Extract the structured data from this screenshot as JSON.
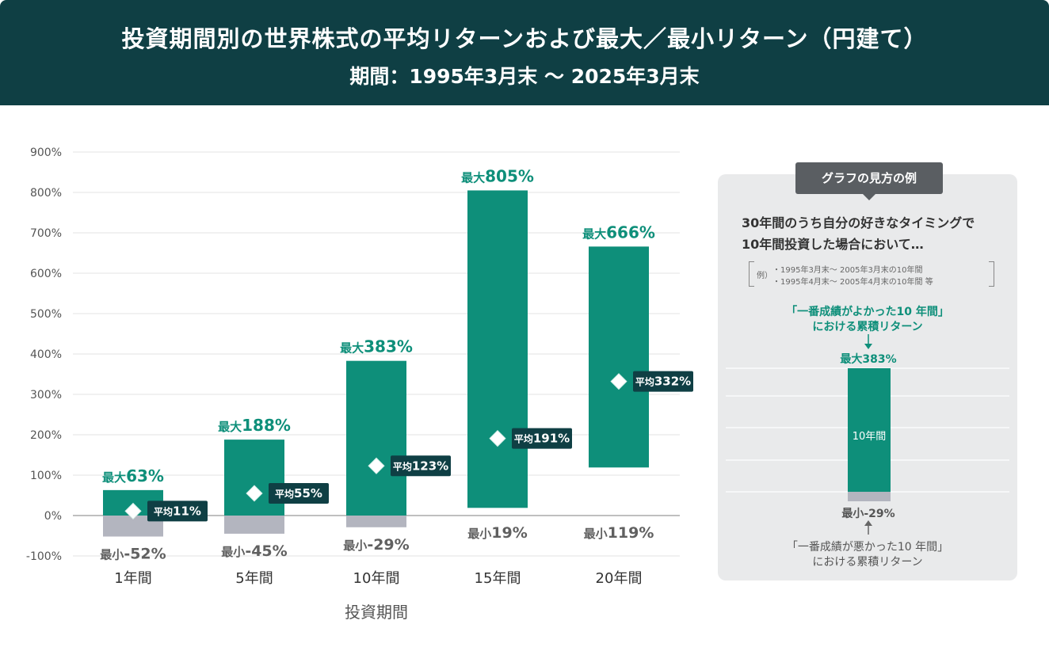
{
  "header": {
    "title": "投資期間別の世界株式の平均リターンおよび最大／最小リターン（円建て）",
    "subtitle": "期間：1995年3月末 ～ 2025年3月末"
  },
  "chart_data": {
    "type": "bar",
    "categories": [
      "1年間",
      "5年間",
      "10年間",
      "15年間",
      "20年間"
    ],
    "max": [
      63,
      188,
      383,
      805,
      666
    ],
    "min": [
      -52,
      -45,
      -29,
      19,
      119
    ],
    "avg": [
      11,
      55,
      123,
      191,
      332
    ],
    "max_prefix": "最大",
    "min_prefix": "最小",
    "avg_prefix": "平均",
    "unit": "%",
    "xlabel": "投資期間",
    "ylim": [
      -100,
      900
    ],
    "yticks": [
      "-100%",
      "0%",
      "100%",
      "200%",
      "300%",
      "400%",
      "500%",
      "600%",
      "700%",
      "800%",
      "900%"
    ],
    "colors": {
      "positive": "#0e8f7a",
      "negative": "#b3b5bf",
      "avg_label_bg": "#0f3f44",
      "max_text": "#0e8f7a",
      "min_text": "#606060"
    },
    "grid": true
  },
  "panel": {
    "tab_label": "グラフの見方の例",
    "desc_line1": "30年間のうち自分の好きなタイミングで",
    "desc_line2": "10年間投資した場合において…",
    "example_tag": "例）",
    "example_line1": "・1995年3月末～ 2005年3月末の10年間",
    "example_line2": "・1995年4月末～ 2005年4月末の10年間 等",
    "best_line1": "「一番成績がよかった10 年間」",
    "best_line2": "における累積リターン",
    "bar_max_label": "最大383%",
    "bar_inner_label": "10年間",
    "bar_min_label": "最小-29%",
    "worst_line1": "「一番成績が悪かった10 年間」",
    "worst_line2": "における累積リターン"
  }
}
